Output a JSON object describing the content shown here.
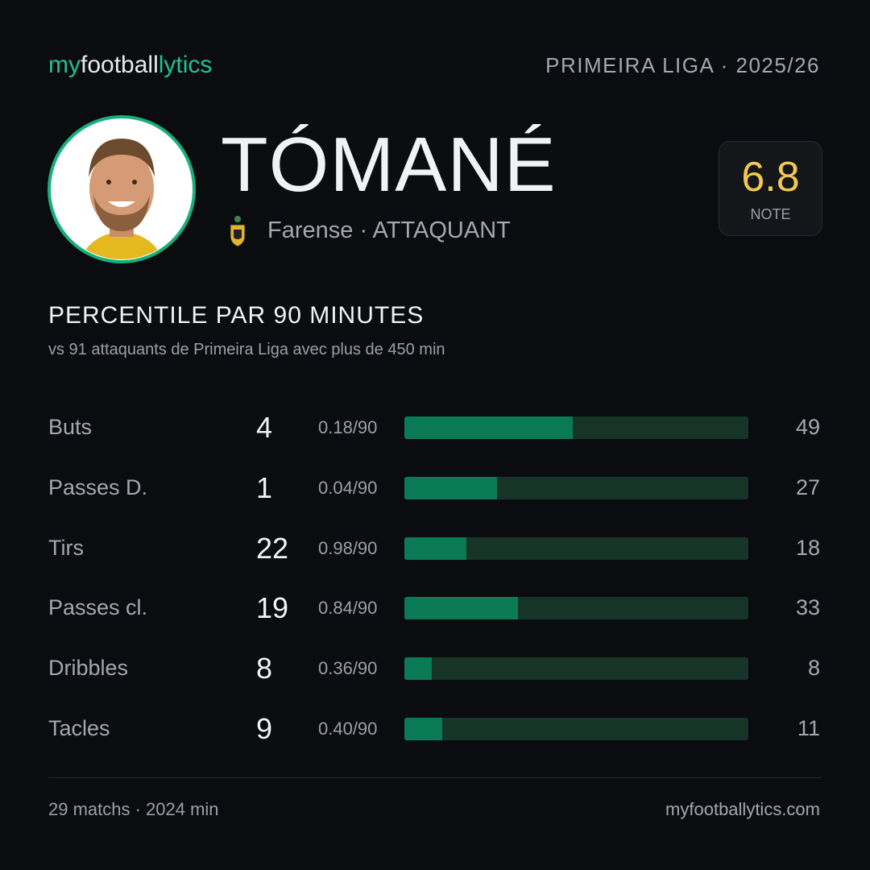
{
  "header": {
    "brand": [
      "my",
      "football",
      "lytics"
    ],
    "league": "PRIMEIRA LIGA · 2025/26"
  },
  "player": {
    "name": "TÓMANÉ",
    "club_role": "Farense · ATTAQUANT",
    "rating": "6.8",
    "rating_label": "NOTE"
  },
  "section": {
    "title": "PERCENTILE PAR 90 MINUTES",
    "subtitle": "vs 91 attaquants de Primeira Liga avec plus de 450 min",
    "percentile_range": [
      0,
      100
    ],
    "rows": [
      {
        "label": "Buts",
        "total": 4,
        "per90": "0.18/90",
        "percentile": 49
      },
      {
        "label": "Passes D.",
        "total": 1,
        "per90": "0.04/90",
        "percentile": 27
      },
      {
        "label": "Tirs",
        "total": 22,
        "per90": "0.98/90",
        "percentile": 18
      },
      {
        "label": "Passes cl.",
        "total": 19,
        "per90": "0.84/90",
        "percentile": 33
      },
      {
        "label": "Dribbles",
        "total": 8,
        "per90": "0.36/90",
        "percentile": 8
      },
      {
        "label": "Tacles",
        "total": 9,
        "per90": "0.40/90",
        "percentile": 11
      }
    ]
  },
  "footer": {
    "summary": "29 matchs · 2024 min",
    "site": "myfootballytics.com"
  }
}
